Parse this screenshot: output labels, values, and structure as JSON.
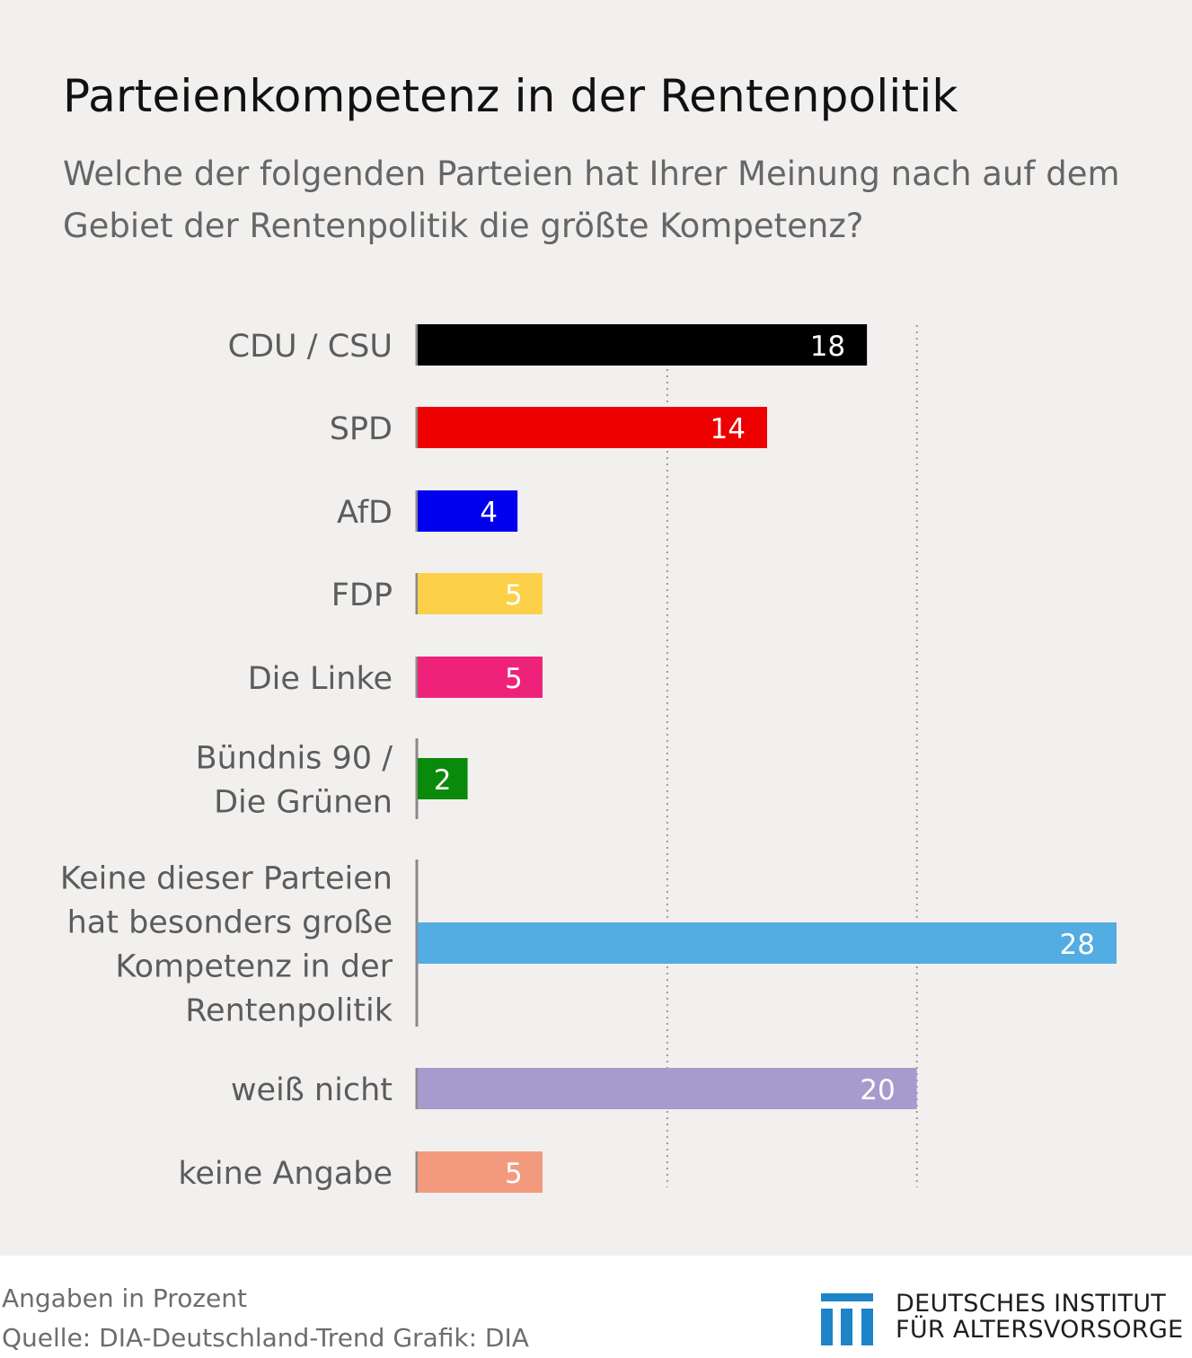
{
  "title": "Parteienkompetenz in der Rentenpolitik",
  "subtitle": "Welche der folgenden Parteien hat Ihrer Meinung nach auf dem Gebiet der Rentenpolitik die größte Kompetenz?",
  "chart_data": {
    "type": "bar",
    "orientation": "horizontal",
    "categories": [
      [
        "CDU / CSU"
      ],
      [
        "SPD"
      ],
      [
        "AfD"
      ],
      [
        "FDP"
      ],
      [
        "Die Linke"
      ],
      [
        "Bündnis 90 /",
        "Die Grünen"
      ],
      [
        "Keine dieser Parteien",
        "hat besonders große",
        "Kompetenz in der",
        "Rentenpolitik"
      ],
      [
        "weiß nicht"
      ],
      [
        "keine Angabe"
      ]
    ],
    "values": [
      18,
      14,
      4,
      5,
      5,
      2,
      28,
      20,
      5
    ],
    "colors": [
      "#000000",
      "#ee0000",
      "#0000ee",
      "#fdd04a",
      "#ee2279",
      "#0a8a0a",
      "#53ace2",
      "#a79acc",
      "#f39a7e"
    ],
    "xlim": [
      0,
      28
    ],
    "gridlines": [
      10,
      20
    ],
    "value_labels": "inside-end"
  },
  "footer": {
    "unit_note": "Angaben in Prozent",
    "source": "Quelle: DIA-Deutschland-Trend  Grafik: DIA"
  },
  "logo": {
    "line1": "DEUTSCHES INSTITUT",
    "line2": "FÜR ALTERSVORSORGE",
    "color": "#1d84c8",
    "icon": "dia-columns-logo-icon"
  }
}
